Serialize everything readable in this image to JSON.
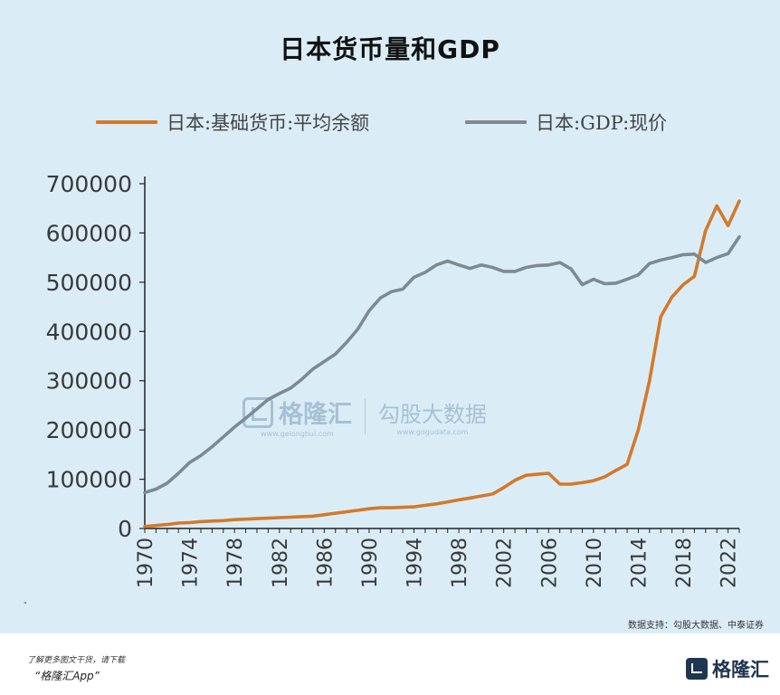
{
  "chart_data": {
    "type": "line",
    "title": "日本货币量和GDP",
    "legend": "top",
    "ylim": [
      0,
      700000
    ],
    "yticks": [
      "0",
      "100000",
      "200000",
      "300000",
      "400000",
      "500000",
      "600000",
      "700000"
    ],
    "xlim": [
      1970,
      2023
    ],
    "xticks": [
      "1970",
      "1974",
      "1978",
      "1982",
      "1986",
      "1990",
      "1994",
      "1998",
      "2002",
      "2006",
      "2010",
      "2014",
      "2018",
      "2022"
    ],
    "grid": false,
    "x": [
      1970,
      1971,
      1972,
      1973,
      1974,
      1975,
      1976,
      1977,
      1978,
      1979,
      1980,
      1981,
      1982,
      1983,
      1984,
      1985,
      1986,
      1987,
      1988,
      1989,
      1990,
      1991,
      1992,
      1993,
      1994,
      1995,
      1996,
      1997,
      1998,
      1999,
      2000,
      2001,
      2002,
      2003,
      2004,
      2005,
      2006,
      2007,
      2008,
      2009,
      2010,
      2011,
      2012,
      2013,
      2014,
      2015,
      2016,
      2017,
      2018,
      2019,
      2020,
      2021,
      2022,
      2023
    ],
    "series": [
      {
        "name": "日本:基础货币:平均余额",
        "color": "#d4792a",
        "values": [
          4000,
          6000,
          8000,
          11000,
          12000,
          14000,
          15000,
          16000,
          18000,
          19000,
          20000,
          21000,
          22000,
          23000,
          24000,
          25000,
          28000,
          31000,
          34000,
          37000,
          40000,
          42000,
          42000,
          43000,
          44000,
          47000,
          50000,
          54000,
          58000,
          62000,
          66000,
          70000,
          83000,
          98000,
          108000,
          110000,
          112000,
          90000,
          90000,
          93000,
          97000,
          105000,
          118000,
          130000,
          200000,
          300000,
          430000,
          470000,
          495000,
          512000,
          605000,
          655000,
          615000,
          665000
        ]
      },
      {
        "name": "日本:GDP:现价",
        "color": "#7d8a91",
        "values": [
          73000,
          80000,
          92000,
          112000,
          134000,
          148000,
          166000,
          186000,
          206000,
          224000,
          243000,
          262000,
          274000,
          285000,
          303000,
          324000,
          339000,
          354000,
          378000,
          405000,
          442000,
          468000,
          481000,
          486000,
          510000,
          520000,
          535000,
          543000,
          535000,
          528000,
          535000,
          530000,
          522000,
          522000,
          530000,
          534000,
          535000,
          540000,
          527000,
          495000,
          506000,
          497000,
          498000,
          506000,
          515000,
          538000,
          545000,
          550000,
          556000,
          557000,
          540000,
          550000,
          558000,
          592000
        ]
      }
    ]
  },
  "source": "数据支持：勾股大数据、中泰证券",
  "watermark": {
    "brand": "格隆汇",
    "brand_sub": "www.gelonghui.com",
    "partner": "勾股大数据",
    "partner_sub": "www.gogudata.com"
  },
  "footer": {
    "line1": "了解更多图文干货，请下载",
    "line2": "“格隆汇App”",
    "logo_text": "格隆汇"
  },
  "mark": "\""
}
